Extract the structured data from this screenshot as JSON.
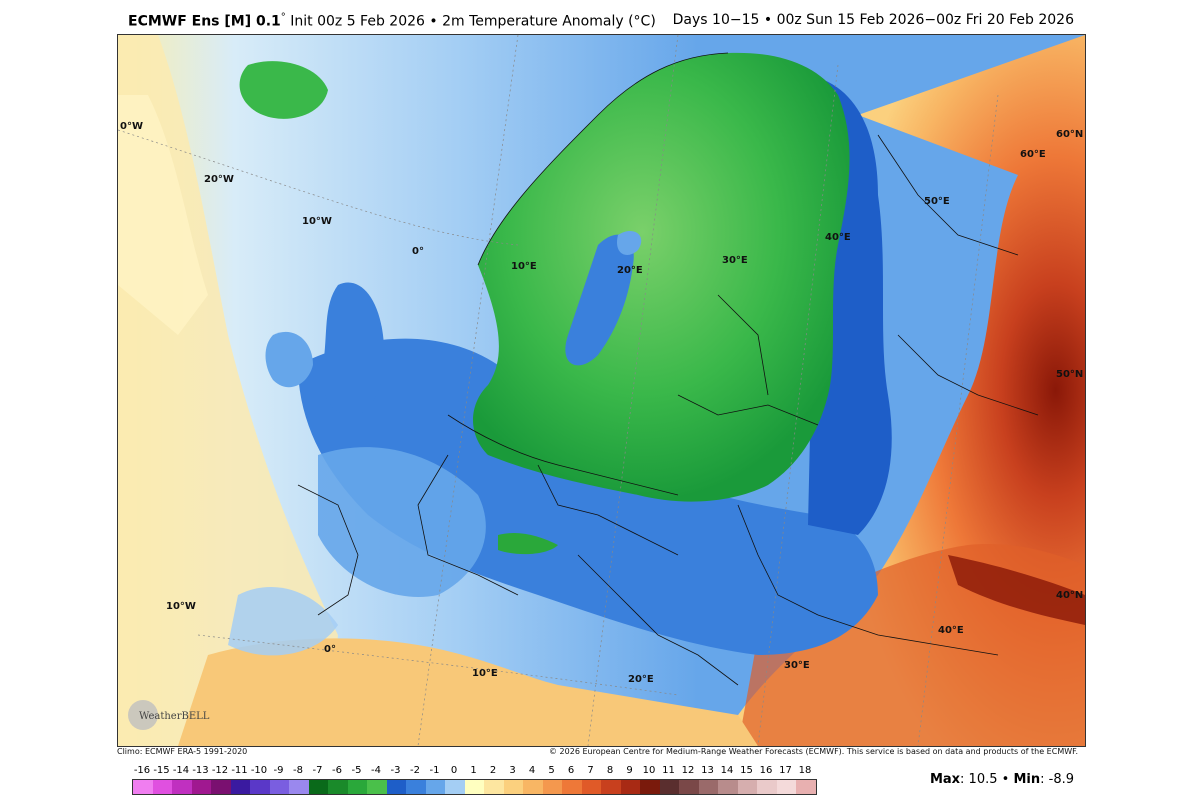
{
  "header": {
    "model": "ECMWF Ens [M] 0.1",
    "degree": "°",
    "init": " Init 00z 5 Feb 2026",
    "bullet": " • ",
    "variable": "2m Temperature Anomaly (°C)",
    "period": "Days 10−15 • 00z Sun 15 Feb 2026−00z Fri 20 Feb 2026"
  },
  "map": {
    "graticule_labels": [
      "0°W",
      "20°W",
      "10°W",
      "0°",
      "10°E",
      "20°E",
      "30°E",
      "40°E",
      "50°E",
      "60°E",
      "60°N",
      "50°N",
      "40°N",
      "40°E",
      "30°E",
      "20°E",
      "10°E",
      "0°",
      "10°W"
    ],
    "colors": {
      "ocean_cold": "#9fd0f0",
      "land_cold": "#3a78d8",
      "green_anomaly": "#2fb84a",
      "green_light": "#7ad06a",
      "warm_light": "#f7d58f",
      "warm_mid": "#f08a4a",
      "warm_strong": "#b52a10"
    },
    "logo_text": "WeatherBELL"
  },
  "credits": {
    "climo": "Climo: ECMWF ERA-5 1991-2020",
    "copyright": "© 2026 European Centre for Medium-Range Weather Forecasts (ECMWF). This service is based on data and products of the ECMWF."
  },
  "colorbar": {
    "ticks": [
      "-16",
      "-15",
      "-14",
      "-13",
      "-12",
      "-11",
      "-10",
      "-9",
      "-8",
      "-7",
      "-6",
      "-5",
      "-4",
      "-3",
      "-2",
      "-1",
      "0",
      "1",
      "2",
      "3",
      "4",
      "5",
      "6",
      "7",
      "8",
      "9",
      "10",
      "11",
      "12",
      "13",
      "14",
      "15",
      "16",
      "17",
      "18"
    ],
    "swatches": [
      "#f07ef0",
      "#e050e0",
      "#c030c0",
      "#a01890",
      "#7a1070",
      "#3a1aa0",
      "#5a38c8",
      "#7a5ee0",
      "#9a88ee",
      "#0a6a1a",
      "#1a8a2a",
      "#2aa83a",
      "#4ac04a",
      "#1e5ec8",
      "#3a80dc",
      "#66a6ea",
      "#a4cef4",
      "#ffffc0",
      "#fde6a0",
      "#fbd07e",
      "#f8b664",
      "#f4984e",
      "#ee7838",
      "#e05a28",
      "#c8401e",
      "#a82a14",
      "#7a1a0c",
      "#5a2e2e",
      "#7a4848",
      "#9a6a6a",
      "#b88c8c",
      "#d6aeae",
      "#eacaca",
      "#f4dada",
      "#e8b0b0"
    ]
  },
  "stats": {
    "max_label": "Max",
    "max_value": ": 10.5",
    "sep": " • ",
    "min_label": "Min",
    "min_value": ": -8.9"
  }
}
